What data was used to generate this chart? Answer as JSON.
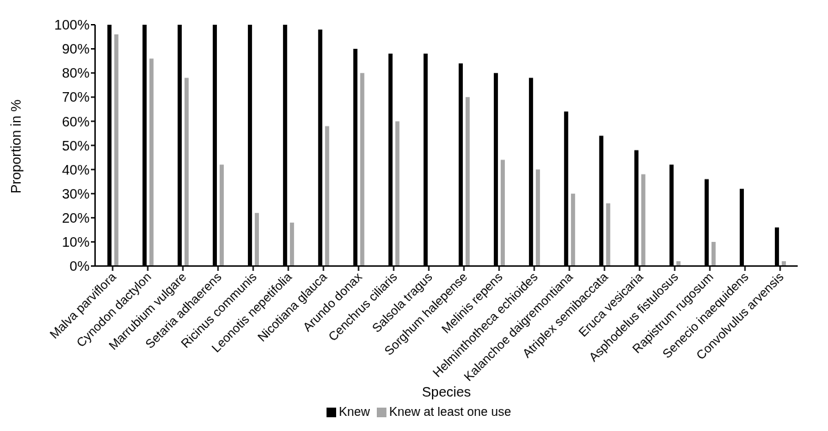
{
  "chart_data": {
    "type": "bar",
    "xlabel": "Species",
    "ylabel": "Proportion in %",
    "categories": [
      "Malva parviflora",
      "Cynodon dactylon",
      "Marrubium vulgare",
      "Setaria adhaerens",
      "Ricinus communis",
      "Leonotis nepetifolia",
      "Nicotiana glauca",
      "Arundo donax",
      "Cenchrus ciliaris",
      "Salsola tragus",
      "Sorghum halepense",
      "Melinis repens",
      "Helminthotheca echioides",
      "Kalanchoe daigremontiana",
      "Atriplex semibaccata",
      "Eruca vesicaria",
      "Asphodelus fistulosus",
      "Rapistrum rugosum",
      "Senecio inaequidens",
      "Convolvulus arvensis"
    ],
    "series": [
      {
        "name": "Knew",
        "color": "#000000",
        "values": [
          100,
          100,
          100,
          100,
          100,
          100,
          98,
          90,
          88,
          88,
          84,
          80,
          78,
          64,
          54,
          48,
          42,
          36,
          32,
          16
        ]
      },
      {
        "name": "Knew at least one use",
        "color": "#a6a6a6",
        "values": [
          96,
          86,
          78,
          42,
          22,
          18,
          58,
          80,
          60,
          0,
          70,
          44,
          40,
          30,
          26,
          38,
          2,
          10,
          0,
          2
        ]
      }
    ],
    "ylim": [
      0,
      100
    ],
    "yticks": [
      {
        "value": 0,
        "label": "0%"
      },
      {
        "value": 10,
        "label": "10%"
      },
      {
        "value": 20,
        "label": "20%"
      },
      {
        "value": 30,
        "label": "30%"
      },
      {
        "value": 40,
        "label": "40%"
      },
      {
        "value": 50,
        "label": "50%"
      },
      {
        "value": 60,
        "label": "60%"
      },
      {
        "value": 70,
        "label": "70%"
      },
      {
        "value": 80,
        "label": "80%"
      },
      {
        "value": 90,
        "label": "90%"
      },
      {
        "value": 100,
        "label": "100%"
      }
    ],
    "grid": false,
    "legend": "bottom"
  }
}
